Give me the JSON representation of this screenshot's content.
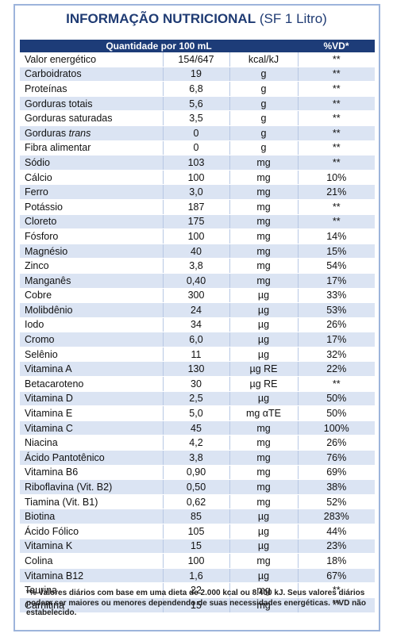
{
  "title": {
    "bold": "INFORMAÇÃO NUTRICIONAL",
    "normal": "(SF 1 Litro)"
  },
  "table": {
    "header": [
      "Quantidade por 100 mL",
      "%VD*"
    ],
    "rows": [
      [
        "Valor energético",
        "154/647",
        "kcal/kJ",
        "**"
      ],
      [
        "Carboidratos",
        "19",
        "g",
        "**"
      ],
      [
        "Proteínas",
        "6,8",
        "g",
        "**"
      ],
      [
        "Gorduras totais",
        "5,6",
        "g",
        "**"
      ],
      [
        "Gorduras saturadas",
        "3,5",
        "g",
        "**"
      ],
      [
        [
          "Gorduras",
          "trans"
        ],
        "0",
        "g",
        "**"
      ],
      [
        "Fibra alimentar",
        "0",
        "g",
        "**"
      ],
      [
        "Sódio",
        "103",
        "mg",
        "**"
      ],
      [
        "Cálcio",
        "100",
        "mg",
        "10%"
      ],
      [
        "Ferro",
        "3,0",
        "mg",
        "21%"
      ],
      [
        "Potássio",
        "187",
        "mg",
        "**"
      ],
      [
        "Cloreto",
        "175",
        "mg",
        "**"
      ],
      [
        "Fósforo",
        "100",
        "mg",
        "14%"
      ],
      [
        "Magnésio",
        "40",
        "mg",
        "15%"
      ],
      [
        "Zinco",
        "3,8",
        "mg",
        "54%"
      ],
      [
        "Manganês",
        "0,40",
        "mg",
        "17%"
      ],
      [
        "Cobre",
        "300",
        "µg",
        "33%"
      ],
      [
        "Molibdênio",
        "24",
        "µg",
        "53%"
      ],
      [
        "Iodo",
        "34",
        "µg",
        "26%"
      ],
      [
        "Cromo",
        "6,0",
        "µg",
        "17%"
      ],
      [
        "Selênio",
        "11",
        "µg",
        "32%"
      ],
      [
        "Vitamina A",
        "130",
        "µg RE",
        "22%"
      ],
      [
        "Betacaroteno",
        "30",
        "µg RE",
        "**"
      ],
      [
        "Vitamina D",
        "2,5",
        "µg",
        "50%"
      ],
      [
        "Vitamina E",
        "5,0",
        "mg αTE",
        "50%"
      ],
      [
        "Vitamina C",
        "45",
        "mg",
        "100%"
      ],
      [
        "Niacina",
        "4,2",
        "mg",
        "26%"
      ],
      [
        "Ácido Pantotênico",
        "3,8",
        "mg",
        "76%"
      ],
      [
        "Vitamina B6",
        "0,90",
        "mg",
        "69%"
      ],
      [
        "Riboflavina (Vit. B2)",
        "0,50",
        "mg",
        "38%"
      ],
      [
        "Tiamina (Vit. B1)",
        "0,62",
        "mg",
        "52%"
      ],
      [
        "Biotina",
        "85",
        "µg",
        "283%"
      ],
      [
        "Ácido Fólico",
        "105",
        "µg",
        "44%"
      ],
      [
        "Vitamina K",
        "15",
        "µg",
        "23%"
      ],
      [
        "Colina",
        "100",
        "mg",
        "18%"
      ],
      [
        "Vitamina B12",
        "1,6",
        "µg",
        "67%"
      ],
      [
        "Taurina",
        "22",
        "mg",
        "**"
      ],
      [
        "Carnitina",
        "15",
        "mg",
        "**"
      ]
    ]
  },
  "footnote": "*% Valores diários com base em uma dieta de 2.000 kcal ou 8.400 kJ. Seus valores diários podem ser maiores ou menores dependendo de suas necessidades energéticas. **VD não estabelecido."
}
